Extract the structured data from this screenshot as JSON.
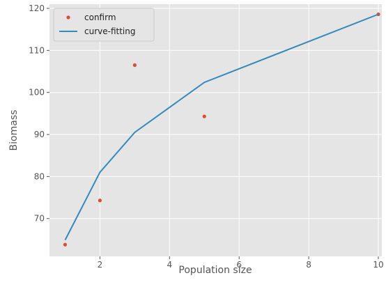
{
  "chart_data": {
    "type": "scatter",
    "xlabel": "Population size",
    "ylabel": "Biomass",
    "xlim": [
      0.55,
      10.1
    ],
    "ylim": [
      61,
      121
    ],
    "xticks": [
      2,
      4,
      6,
      8,
      10
    ],
    "yticks": [
      70,
      80,
      90,
      100,
      110,
      120
    ],
    "grid": true,
    "legend_position": "top-left",
    "series": [
      {
        "name": "confirm",
        "kind": "scatter",
        "color": "#E24A33",
        "x": [
          1,
          2,
          3,
          5,
          10
        ],
        "y": [
          63.8,
          74.3,
          106.5,
          94.3,
          118.6
        ]
      },
      {
        "name": "curve-fitting",
        "kind": "line",
        "color": "#348ABD",
        "x": [
          1,
          2,
          3,
          5,
          10
        ],
        "y": [
          64.9,
          81.0,
          90.5,
          102.4,
          118.6
        ]
      }
    ]
  }
}
